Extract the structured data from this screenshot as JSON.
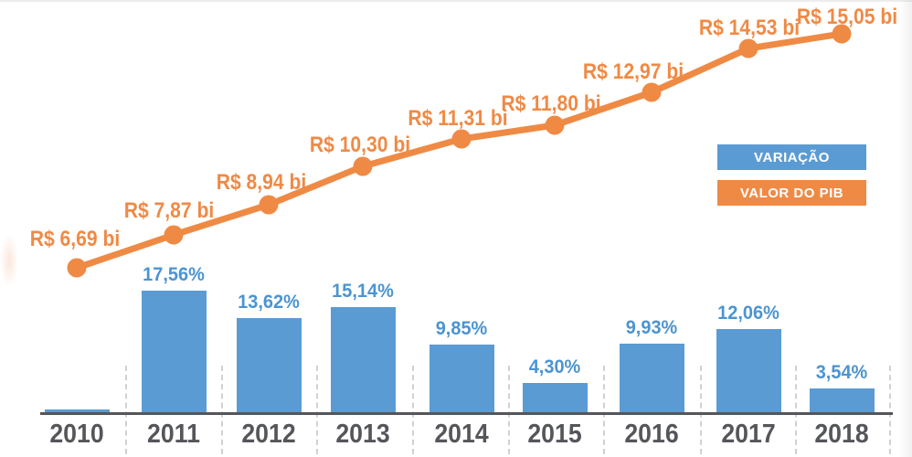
{
  "chart_data": {
    "type": "combo",
    "title": "",
    "categories": [
      "2010",
      "2011",
      "2012",
      "2013",
      "2014",
      "2015",
      "2016",
      "2017",
      "2018"
    ],
    "series": [
      {
        "name": "VALOR DO PIB",
        "type": "line",
        "unit": "R$ bi",
        "color": "#EF8A45",
        "values": [
          6.69,
          7.87,
          8.94,
          10.3,
          11.31,
          11.8,
          12.97,
          14.53,
          15.05
        ],
        "labels": [
          "R$ 6,69 bi",
          "R$ 7,87 bi",
          "R$ 8,94 bi",
          "R$ 10,30 bi",
          "R$ 11,31 bi",
          "R$ 11,80 bi",
          "R$ 12,97 bi",
          "R$ 14,53 bi",
          "R$ 15,05 bi"
        ]
      },
      {
        "name": "VARIAÇÃO",
        "type": "bar",
        "unit": "%",
        "color": "#5B9BD3",
        "values": [
          null,
          17.56,
          13.62,
          15.14,
          9.85,
          4.3,
          9.93,
          12.06,
          3.54
        ],
        "labels": [
          "",
          "17,56%",
          "13,62%",
          "15,14%",
          "9,85%",
          "4,30%",
          "9,93%",
          "12,06%",
          "3,54%"
        ]
      }
    ],
    "legend": [
      {
        "label": "VARIAÇÃO",
        "color": "#5B9BD3"
      },
      {
        "label": "VALOR DO PIB",
        "color": "#EF8A45"
      }
    ],
    "legend_position": "middle-right",
    "grid": "dashed-vertical-separators",
    "x_axis": {
      "baseline": true,
      "tick_labels": [
        "2010",
        "2011",
        "2012",
        "2013",
        "2014",
        "2015",
        "2016",
        "2017",
        "2018"
      ]
    },
    "colors": {
      "bar": "#5B9BD3",
      "bar_value_text": "#4C94D0",
      "line": "#EF8A45",
      "line_value_text": "#EF8A45",
      "axis": "#55565A",
      "separator": "#CDD2D6"
    }
  }
}
